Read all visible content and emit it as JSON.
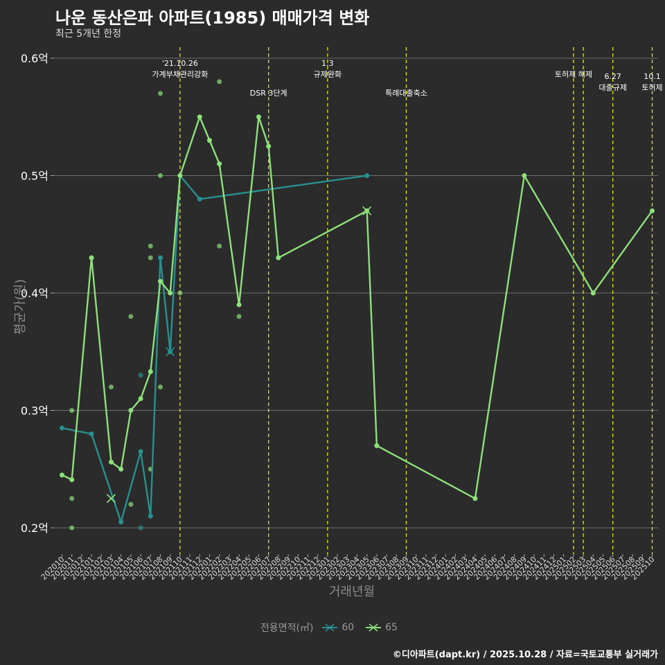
{
  "title": "나운 동산은파 아파트(1985) 매매가격 변화",
  "subtitle": "최근 5개년 한정",
  "caption": "©디아파트(dapt.kr) / 2025.10.28 / 자료=국토교통부 실거래가",
  "legend": {
    "title": "전용면적(㎡)",
    "items": [
      "60",
      "65"
    ]
  },
  "colors": {
    "background": "#2b2b2b",
    "grid": "#6e6e6e",
    "series60": "#2a8f8f",
    "series65": "#8fe07c",
    "event": "#e3e31c",
    "text": "#ffffff"
  },
  "chart_data": {
    "type": "line",
    "title": "나운 동산은파 아파트(1985) 매매가격 변화",
    "xlabel": "거래년월",
    "ylabel": "평균가(원)",
    "ylim": [
      0.18,
      0.61
    ],
    "yticks": [
      0.2,
      0.3,
      0.4,
      0.5,
      0.6
    ],
    "ytick_labels": [
      "0.2억",
      "0.3억",
      "0.4억",
      "0.5억",
      "0.6억"
    ],
    "categories": [
      "202010",
      "202011",
      "202012",
      "202101",
      "202102",
      "202103",
      "202104",
      "202105",
      "202106",
      "202107",
      "202108",
      "202109",
      "202110",
      "202111",
      "202112",
      "202201",
      "202202",
      "202203",
      "202204",
      "202205",
      "202206",
      "202207",
      "202208",
      "202209",
      "202210",
      "202211",
      "202212",
      "202301",
      "202302",
      "202303",
      "202304",
      "202305",
      "202306",
      "202307",
      "202308",
      "202309",
      "202310",
      "202311",
      "202312",
      "202401",
      "202402",
      "202403",
      "202404",
      "202405",
      "202406",
      "202407",
      "202408",
      "202409",
      "202410",
      "202411",
      "202412",
      "202501",
      "202502",
      "202503",
      "202504",
      "202505",
      "202506",
      "202507",
      "202508",
      "202509",
      "202510"
    ],
    "series": [
      {
        "name": "60",
        "x": [
          "202010",
          "202101",
          "202104",
          "202106",
          "202107",
          "202108",
          "202109",
          "202110",
          "202112",
          "202305"
        ],
        "values": [
          0.285,
          0.28,
          0.205,
          0.265,
          0.21,
          0.43,
          0.35,
          0.5,
          0.48,
          0.5
        ]
      },
      {
        "name": "65",
        "x": [
          "202010",
          "202011",
          "202101",
          "202103",
          "202104",
          "202105",
          "202106",
          "202107",
          "202108",
          "202109",
          "202110",
          "202112",
          "202201",
          "202202",
          "202204",
          "202206",
          "202207",
          "202208",
          "202305",
          "202306",
          "202404",
          "202409",
          "202504",
          "202510"
        ],
        "values": [
          0.245,
          0.241,
          0.43,
          0.256,
          0.25,
          0.3,
          0.31,
          0.333,
          0.41,
          0.4,
          0.5,
          0.55,
          0.53,
          0.51,
          0.39,
          0.55,
          0.525,
          0.43,
          0.47,
          0.27,
          0.225,
          0.5,
          0.4,
          0.47
        ]
      }
    ],
    "scatter": [
      {
        "x": "202011",
        "y": 0.3,
        "series": "65"
      },
      {
        "x": "202011",
        "y": 0.225,
        "series": "65"
      },
      {
        "x": "202011",
        "y": 0.2,
        "series": "65"
      },
      {
        "x": "202103",
        "y": 0.32,
        "series": "65"
      },
      {
        "x": "202105",
        "y": 0.38,
        "series": "65"
      },
      {
        "x": "202105",
        "y": 0.22,
        "series": "65"
      },
      {
        "x": "202106",
        "y": 0.33,
        "series": "60"
      },
      {
        "x": "202106",
        "y": 0.2,
        "series": "60"
      },
      {
        "x": "202107",
        "y": 0.44,
        "series": "65"
      },
      {
        "x": "202107",
        "y": 0.43,
        "series": "65"
      },
      {
        "x": "202107",
        "y": 0.25,
        "series": "65"
      },
      {
        "x": "202108",
        "y": 0.57,
        "series": "65"
      },
      {
        "x": "202108",
        "y": 0.5,
        "series": "65"
      },
      {
        "x": "202108",
        "y": 0.32,
        "series": "65"
      },
      {
        "x": "202110",
        "y": 0.4,
        "series": "65"
      },
      {
        "x": "202202",
        "y": 0.58,
        "series": "65"
      },
      {
        "x": "202202",
        "y": 0.44,
        "series": "65"
      },
      {
        "x": "202204",
        "y": 0.38,
        "series": "65"
      }
    ],
    "cross_markers": [
      {
        "x": "202103",
        "y": 0.225,
        "series": "60"
      },
      {
        "x": "202103",
        "y": 0.225,
        "series": "65"
      },
      {
        "x": "202109",
        "y": 0.35,
        "series": "60"
      },
      {
        "x": "202305",
        "y": 0.47,
        "series": "65"
      }
    ],
    "events": [
      {
        "x": "202110",
        "lines": [
          "'21.10.26",
          "가계부채관리강화"
        ],
        "row": 1
      },
      {
        "x": "202207",
        "lines": [
          "DSR 3단계"
        ],
        "row": 2
      },
      {
        "x": "202301",
        "lines": [
          "1.3",
          "규제완화"
        ],
        "row": 1
      },
      {
        "x": "202309",
        "lines": [
          "특례대출축소"
        ],
        "row": 2
      },
      {
        "x": "202502",
        "lines": [
          "토허제 해제"
        ],
        "row": 1
      },
      {
        "x": "202503",
        "lines": [],
        "row": 1
      },
      {
        "x": "202506",
        "lines": [
          "6.27",
          "대출규제"
        ],
        "row": 3
      },
      {
        "x": "202510",
        "lines": [
          "10.1",
          "토허제"
        ],
        "row": 3
      }
    ]
  }
}
